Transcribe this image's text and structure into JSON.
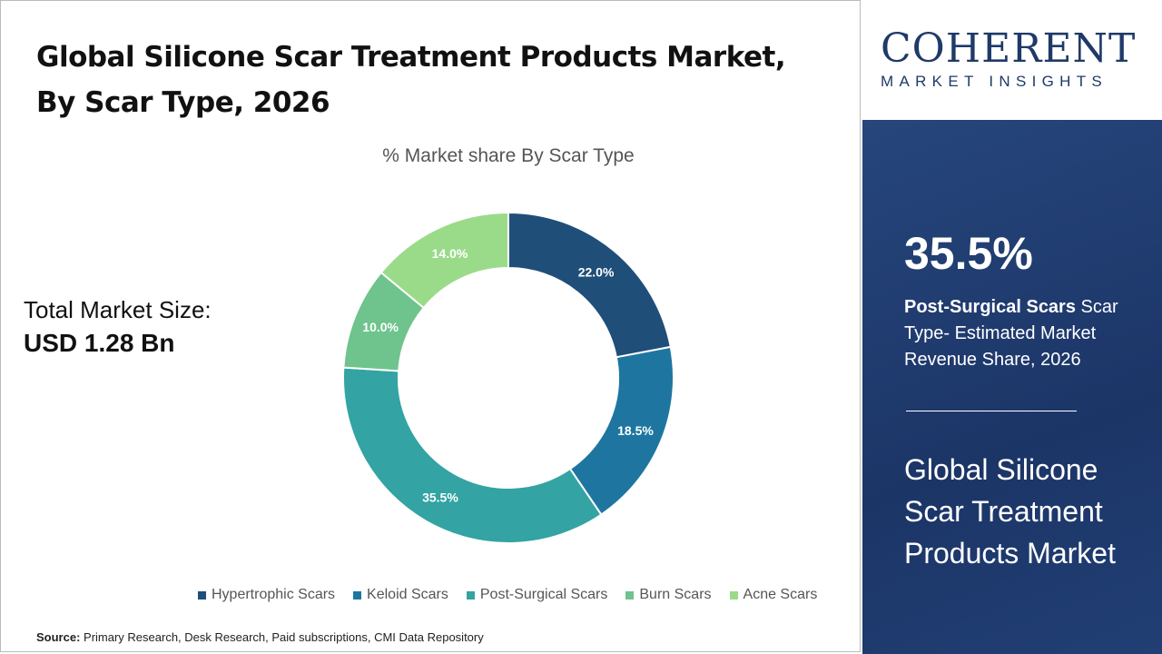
{
  "header": {
    "title_line1": "Global Silicone Scar Treatment Products Market,",
    "title_line2": "By Scar Type, 2026"
  },
  "market_size": {
    "label": "Total Market Size:",
    "value": "USD 1.28 Bn"
  },
  "source": {
    "label": "Source:",
    "text": "Primary Research, Desk Research, Paid subscriptions, CMI Data Repository"
  },
  "logo": {
    "line1": "COHERENT",
    "line2": "MARKET INSIGHTS"
  },
  "panel": {
    "highlight_value": "35.5%",
    "highlight_bold": "Post-Surgical Scars",
    "highlight_text": " Scar Type- Estimated Market Revenue Share, 2026",
    "market_name": "Global Silicone Scar Treatment Products Market"
  },
  "chart_data": {
    "type": "pie",
    "subtype": "donut",
    "title": "% Market share By Scar Type",
    "categories": [
      "Hypertrophic Scars",
      "Keloid Scars",
      "Post-Surgical Scars",
      "Burn Scars",
      "Acne Scars"
    ],
    "values": [
      22.0,
      18.5,
      35.5,
      10.0,
      14.0
    ],
    "labels": [
      "22.0%",
      "18.5%",
      "35.5%",
      "10.0%",
      "14.0%"
    ],
    "colors": [
      "#1f4e79",
      "#1e76a0",
      "#33a3a3",
      "#6ec48c",
      "#9adb8a"
    ],
    "legend_position": "bottom"
  }
}
